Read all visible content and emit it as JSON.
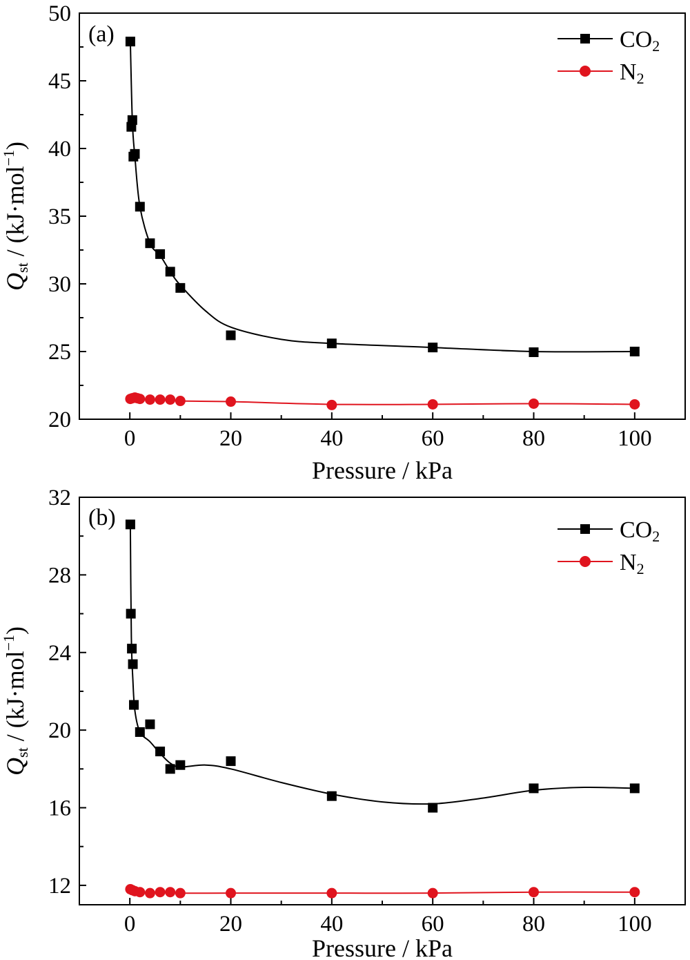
{
  "chart_data": [
    {
      "type": "line",
      "panel_label": "(a)",
      "xlabel": "Pressure / kPa",
      "ylabel_symbol": "Q",
      "ylabel_subscript": "st",
      "ylabel_unit": " / (kJ·mol",
      "ylabel_unit_sup": "−1",
      "ylabel_unit_close": ")",
      "xlim": [
        -10,
        110
      ],
      "ylim": [
        20,
        50
      ],
      "xticks": [
        0,
        20,
        40,
        60,
        80,
        100
      ],
      "yticks": [
        20,
        25,
        30,
        35,
        40,
        45,
        50
      ],
      "legend_position": "top-right",
      "series": [
        {
          "name": "CO",
          "name_sub": "2",
          "color": "#000000",
          "marker": "square",
          "x": [
            0.1,
            0.3,
            0.5,
            0.7,
            1,
            2,
            4,
            6,
            8,
            10,
            20,
            40,
            60,
            80,
            100
          ],
          "y": [
            47.9,
            41.6,
            42.1,
            39.4,
            39.6,
            35.7,
            33.0,
            32.2,
            30.9,
            29.7,
            26.2,
            25.6,
            25.3,
            24.95,
            25.0
          ],
          "curve_x": [
            0.1,
            0.5,
            1,
            2,
            4,
            6,
            8,
            10,
            15,
            20,
            30,
            40,
            60,
            80,
            100
          ],
          "curve_y": [
            47.9,
            42.0,
            39.4,
            35.7,
            33.0,
            32.1,
            30.9,
            29.9,
            28.0,
            26.8,
            25.9,
            25.6,
            25.3,
            25.0,
            25.0
          ]
        },
        {
          "name": "N",
          "name_sub": "2",
          "color": "#e0141e",
          "marker": "circle",
          "x": [
            0.1,
            0.5,
            1,
            1.5,
            2,
            4,
            6,
            8,
            10,
            20,
            40,
            60,
            80,
            100
          ],
          "y": [
            21.5,
            21.55,
            21.6,
            21.55,
            21.5,
            21.45,
            21.45,
            21.45,
            21.35,
            21.3,
            21.05,
            21.1,
            21.15,
            21.1
          ],
          "curve_x": [
            0.1,
            2,
            10,
            20,
            40,
            60,
            80,
            100
          ],
          "curve_y": [
            21.5,
            21.5,
            21.35,
            21.3,
            21.1,
            21.1,
            21.15,
            21.1
          ]
        }
      ]
    },
    {
      "type": "line",
      "panel_label": "(b)",
      "xlabel": "Pressure / kPa",
      "ylabel_symbol": "Q",
      "ylabel_subscript": "st",
      "ylabel_unit": " / (kJ·mol",
      "ylabel_unit_sup": "−1",
      "ylabel_unit_close": ")",
      "xlim": [
        -10,
        110
      ],
      "ylim": [
        11,
        32
      ],
      "xticks": [
        0,
        20,
        40,
        60,
        80,
        100
      ],
      "yticks": [
        12,
        16,
        20,
        24,
        28,
        32
      ],
      "legend_position": "top-right",
      "series": [
        {
          "name": "CO",
          "name_sub": "2",
          "color": "#000000",
          "marker": "square",
          "x": [
            0.1,
            0.2,
            0.4,
            0.6,
            0.8,
            2,
            4,
            6,
            8,
            10,
            20,
            40,
            60,
            80,
            100
          ],
          "y": [
            30.6,
            26.0,
            24.2,
            23.4,
            21.3,
            19.9,
            20.3,
            18.9,
            18.0,
            18.2,
            18.4,
            16.6,
            16.0,
            17.0,
            17.0
          ],
          "curve_x": [
            0.1,
            0.3,
            0.6,
            1,
            2,
            4,
            6,
            8,
            10,
            15,
            20,
            30,
            40,
            50,
            60,
            70,
            80,
            90,
            100
          ],
          "curve_y": [
            30.6,
            24.8,
            22.6,
            21.0,
            19.9,
            19.4,
            18.8,
            18.3,
            18.1,
            18.2,
            18.0,
            17.3,
            16.7,
            16.3,
            16.2,
            16.5,
            16.9,
            17.05,
            17.0
          ]
        },
        {
          "name": "N",
          "name_sub": "2",
          "color": "#e0141e",
          "marker": "circle",
          "x": [
            0.1,
            0.5,
            1,
            2,
            4,
            6,
            8,
            10,
            20,
            40,
            60,
            80,
            100
          ],
          "y": [
            11.8,
            11.75,
            11.7,
            11.65,
            11.6,
            11.65,
            11.65,
            11.6,
            11.6,
            11.6,
            11.6,
            11.65,
            11.65
          ],
          "curve_x": [
            0.1,
            2,
            10,
            20,
            40,
            60,
            80,
            100
          ],
          "curve_y": [
            11.8,
            11.65,
            11.6,
            11.6,
            11.6,
            11.6,
            11.65,
            11.65
          ]
        }
      ]
    }
  ]
}
